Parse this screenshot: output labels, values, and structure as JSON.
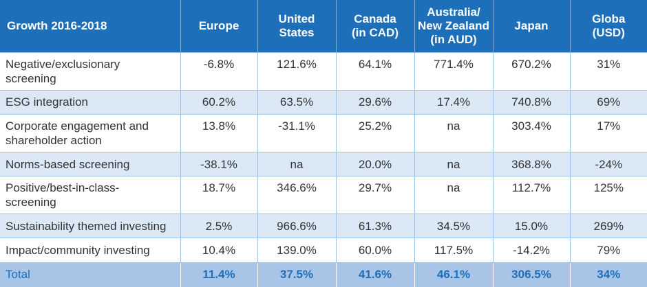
{
  "chart_data": {
    "type": "table",
    "columns": [
      "Growth 2016-2018",
      "Europe",
      "United States",
      "Canada (in CAD)",
      "Australia/ New Zealand (in AUD)",
      "Japan",
      "Globa (USD)"
    ],
    "header": {
      "c0": [
        "Growth 2016-2018"
      ],
      "c1": [
        "Europe"
      ],
      "c2": [
        "United",
        "States"
      ],
      "c3": [
        "Canada",
        "(in CAD)"
      ],
      "c4": [
        "Australia/",
        "New Zealand",
        "(in AUD)"
      ],
      "c5": [
        "Japan"
      ],
      "c6": [
        "Globa",
        "(USD)"
      ]
    },
    "rows": [
      {
        "label": [
          "Negative/exclusionary",
          "screening"
        ],
        "values": [
          "-6.8%",
          "121.6%",
          "64.1%",
          "771.4%",
          "670.2%",
          "31%"
        ]
      },
      {
        "label": [
          "ESG integration"
        ],
        "values": [
          "60.2%",
          "63.5%",
          "29.6%",
          "17.4%",
          "740.8%",
          "69%"
        ]
      },
      {
        "label": [
          "Corporate engagement and",
          "shareholder action"
        ],
        "values": [
          "13.8%",
          "-31.1%",
          "25.2%",
          "na",
          "303.4%",
          "17%"
        ]
      },
      {
        "label": [
          "Norms-based screening"
        ],
        "values": [
          "-38.1%",
          "na",
          "20.0%",
          "na",
          "368.8%",
          "-24%"
        ]
      },
      {
        "label": [
          "Positive/best-in-class-",
          "screening"
        ],
        "values": [
          "18.7%",
          "346.6%",
          "29.7%",
          "na",
          "112.7%",
          "125%"
        ]
      },
      {
        "label": [
          "Sustainability themed investing"
        ],
        "values": [
          "2.5%",
          "966.6%",
          "61.3%",
          "34.5%",
          "15.0%",
          "269%"
        ]
      },
      {
        "label": [
          "Impact/community investing"
        ],
        "values": [
          "10.4%",
          "139.0%",
          "60.0%",
          "117.5%",
          "-14.2%",
          "79%"
        ]
      }
    ],
    "total": {
      "label": "Total",
      "values": [
        "11.4%",
        "37.5%",
        "41.6%",
        "46.1%",
        "306.5%",
        "34%"
      ]
    },
    "colors": {
      "header_bg": "#1e6fba",
      "header_text": "#ffffff",
      "shaded_row": "#dbe8f5",
      "total_row": "#a8c4e6",
      "total_text": "#1e6fba",
      "body_text": "#333333"
    }
  }
}
